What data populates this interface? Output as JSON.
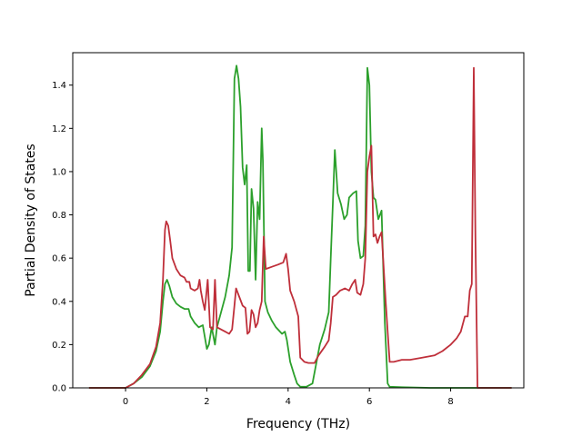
{
  "chart_data": {
    "type": "line",
    "title": "",
    "xlabel": "Frequency (THz)",
    "ylabel": "Partial Density of States",
    "xlim": [
      -1.3,
      9.8
    ],
    "ylim": [
      0.0,
      1.55
    ],
    "xticks": [
      0,
      2,
      4,
      6,
      8
    ],
    "xtick_labels": [
      "0",
      "2",
      "4",
      "6",
      "8"
    ],
    "yticks": [
      0.0,
      0.2,
      0.4,
      0.6,
      0.8,
      1.0,
      1.2,
      1.4
    ],
    "ytick_labels": [
      "0.0",
      "0.2",
      "0.4",
      "0.6",
      "0.8",
      "1.0",
      "1.2",
      "1.4"
    ],
    "grid": false,
    "series": [
      {
        "color": "#2ca02c",
        "points": [
          [
            -0.9,
            0.0
          ],
          [
            0.0,
            0.0
          ],
          [
            0.2,
            0.02
          ],
          [
            0.4,
            0.05
          ],
          [
            0.6,
            0.1
          ],
          [
            0.75,
            0.17
          ],
          [
            0.85,
            0.26
          ],
          [
            0.92,
            0.4
          ],
          [
            0.97,
            0.48
          ],
          [
            1.02,
            0.5
          ],
          [
            1.08,
            0.47
          ],
          [
            1.15,
            0.42
          ],
          [
            1.25,
            0.39
          ],
          [
            1.35,
            0.375
          ],
          [
            1.45,
            0.365
          ],
          [
            1.55,
            0.365
          ],
          [
            1.6,
            0.33
          ],
          [
            1.7,
            0.3
          ],
          [
            1.8,
            0.28
          ],
          [
            1.9,
            0.29
          ],
          [
            2.0,
            0.18
          ],
          [
            2.05,
            0.2
          ],
          [
            2.12,
            0.28
          ],
          [
            2.2,
            0.2
          ],
          [
            2.25,
            0.28
          ],
          [
            2.35,
            0.35
          ],
          [
            2.45,
            0.42
          ],
          [
            2.55,
            0.52
          ],
          [
            2.62,
            0.65
          ],
          [
            2.68,
            1.43
          ],
          [
            2.73,
            1.49
          ],
          [
            2.78,
            1.43
          ],
          [
            2.83,
            1.3
          ],
          [
            2.88,
            1.02
          ],
          [
            2.93,
            0.94
          ],
          [
            2.98,
            1.03
          ],
          [
            3.02,
            0.54
          ],
          [
            3.06,
            0.54
          ],
          [
            3.1,
            0.92
          ],
          [
            3.15,
            0.83
          ],
          [
            3.2,
            0.5
          ],
          [
            3.25,
            0.86
          ],
          [
            3.3,
            0.78
          ],
          [
            3.35,
            1.2
          ],
          [
            3.38,
            1.05
          ],
          [
            3.43,
            0.4
          ],
          [
            3.5,
            0.35
          ],
          [
            3.6,
            0.31
          ],
          [
            3.7,
            0.28
          ],
          [
            3.85,
            0.25
          ],
          [
            3.92,
            0.26
          ],
          [
            3.97,
            0.22
          ],
          [
            4.05,
            0.12
          ],
          [
            4.15,
            0.06
          ],
          [
            4.22,
            0.02
          ],
          [
            4.3,
            0.005
          ],
          [
            4.45,
            0.005
          ],
          [
            4.6,
            0.02
          ],
          [
            4.7,
            0.12
          ],
          [
            4.78,
            0.2
          ],
          [
            4.9,
            0.27
          ],
          [
            5.0,
            0.35
          ],
          [
            5.05,
            0.6
          ],
          [
            5.1,
            0.85
          ],
          [
            5.15,
            1.1
          ],
          [
            5.22,
            0.9
          ],
          [
            5.3,
            0.85
          ],
          [
            5.38,
            0.78
          ],
          [
            5.45,
            0.8
          ],
          [
            5.5,
            0.88
          ],
          [
            5.6,
            0.9
          ],
          [
            5.68,
            0.91
          ],
          [
            5.72,
            0.68
          ],
          [
            5.78,
            0.6
          ],
          [
            5.85,
            0.61
          ],
          [
            5.9,
            0.75
          ],
          [
            5.95,
            1.48
          ],
          [
            6.0,
            1.4
          ],
          [
            6.05,
            1.0
          ],
          [
            6.1,
            0.88
          ],
          [
            6.15,
            0.87
          ],
          [
            6.22,
            0.78
          ],
          [
            6.3,
            0.82
          ],
          [
            6.38,
            0.3
          ],
          [
            6.45,
            0.02
          ],
          [
            6.5,
            0.005
          ],
          [
            6.8,
            0.003
          ],
          [
            7.5,
            0.0
          ],
          [
            9.5,
            0.0
          ]
        ]
      },
      {
        "color": "#bf2f3a",
        "points": [
          [
            -0.9,
            0.0
          ],
          [
            0.0,
            0.0
          ],
          [
            0.2,
            0.02
          ],
          [
            0.4,
            0.06
          ],
          [
            0.6,
            0.11
          ],
          [
            0.75,
            0.19
          ],
          [
            0.85,
            0.3
          ],
          [
            0.92,
            0.5
          ],
          [
            0.97,
            0.73
          ],
          [
            1.0,
            0.77
          ],
          [
            1.05,
            0.75
          ],
          [
            1.1,
            0.68
          ],
          [
            1.15,
            0.6
          ],
          [
            1.25,
            0.55
          ],
          [
            1.35,
            0.52
          ],
          [
            1.45,
            0.51
          ],
          [
            1.5,
            0.49
          ],
          [
            1.57,
            0.49
          ],
          [
            1.6,
            0.46
          ],
          [
            1.7,
            0.45
          ],
          [
            1.78,
            0.46
          ],
          [
            1.82,
            0.5
          ],
          [
            1.85,
            0.45
          ],
          [
            1.9,
            0.4
          ],
          [
            1.95,
            0.36
          ],
          [
            2.02,
            0.5
          ],
          [
            2.08,
            0.28
          ],
          [
            2.15,
            0.27
          ],
          [
            2.2,
            0.5
          ],
          [
            2.25,
            0.28
          ],
          [
            2.35,
            0.27
          ],
          [
            2.45,
            0.26
          ],
          [
            2.55,
            0.25
          ],
          [
            2.62,
            0.27
          ],
          [
            2.68,
            0.38
          ],
          [
            2.72,
            0.46
          ],
          [
            2.8,
            0.42
          ],
          [
            2.88,
            0.38
          ],
          [
            2.95,
            0.37
          ],
          [
            3.0,
            0.25
          ],
          [
            3.05,
            0.26
          ],
          [
            3.1,
            0.36
          ],
          [
            3.15,
            0.34
          ],
          [
            3.2,
            0.28
          ],
          [
            3.25,
            0.3
          ],
          [
            3.3,
            0.36
          ],
          [
            3.35,
            0.4
          ],
          [
            3.4,
            0.7
          ],
          [
            3.45,
            0.55
          ],
          [
            3.6,
            0.56
          ],
          [
            3.75,
            0.57
          ],
          [
            3.88,
            0.58
          ],
          [
            3.95,
            0.62
          ],
          [
            4.0,
            0.55
          ],
          [
            4.05,
            0.45
          ],
          [
            4.15,
            0.4
          ],
          [
            4.25,
            0.33
          ],
          [
            4.3,
            0.14
          ],
          [
            4.4,
            0.12
          ],
          [
            4.5,
            0.115
          ],
          [
            4.65,
            0.115
          ],
          [
            4.75,
            0.15
          ],
          [
            4.9,
            0.19
          ],
          [
            5.0,
            0.22
          ],
          [
            5.05,
            0.3
          ],
          [
            5.1,
            0.42
          ],
          [
            5.18,
            0.43
          ],
          [
            5.28,
            0.45
          ],
          [
            5.4,
            0.46
          ],
          [
            5.5,
            0.45
          ],
          [
            5.58,
            0.48
          ],
          [
            5.65,
            0.5
          ],
          [
            5.7,
            0.44
          ],
          [
            5.78,
            0.43
          ],
          [
            5.85,
            0.48
          ],
          [
            5.9,
            0.6
          ],
          [
            5.95,
            1.0
          ],
          [
            6.0,
            1.07
          ],
          [
            6.05,
            1.12
          ],
          [
            6.1,
            0.7
          ],
          [
            6.15,
            0.71
          ],
          [
            6.2,
            0.67
          ],
          [
            6.25,
            0.7
          ],
          [
            6.3,
            0.72
          ],
          [
            6.4,
            0.4
          ],
          [
            6.5,
            0.12
          ],
          [
            6.6,
            0.12
          ],
          [
            6.8,
            0.13
          ],
          [
            7.0,
            0.13
          ],
          [
            7.3,
            0.14
          ],
          [
            7.6,
            0.15
          ],
          [
            7.8,
            0.17
          ],
          [
            8.0,
            0.2
          ],
          [
            8.15,
            0.23
          ],
          [
            8.25,
            0.26
          ],
          [
            8.35,
            0.33
          ],
          [
            8.42,
            0.33
          ],
          [
            8.47,
            0.45
          ],
          [
            8.52,
            0.48
          ],
          [
            8.57,
            1.48
          ],
          [
            8.61,
            0.7
          ],
          [
            8.66,
            0.0
          ],
          [
            9.5,
            0.0
          ]
        ]
      }
    ]
  }
}
